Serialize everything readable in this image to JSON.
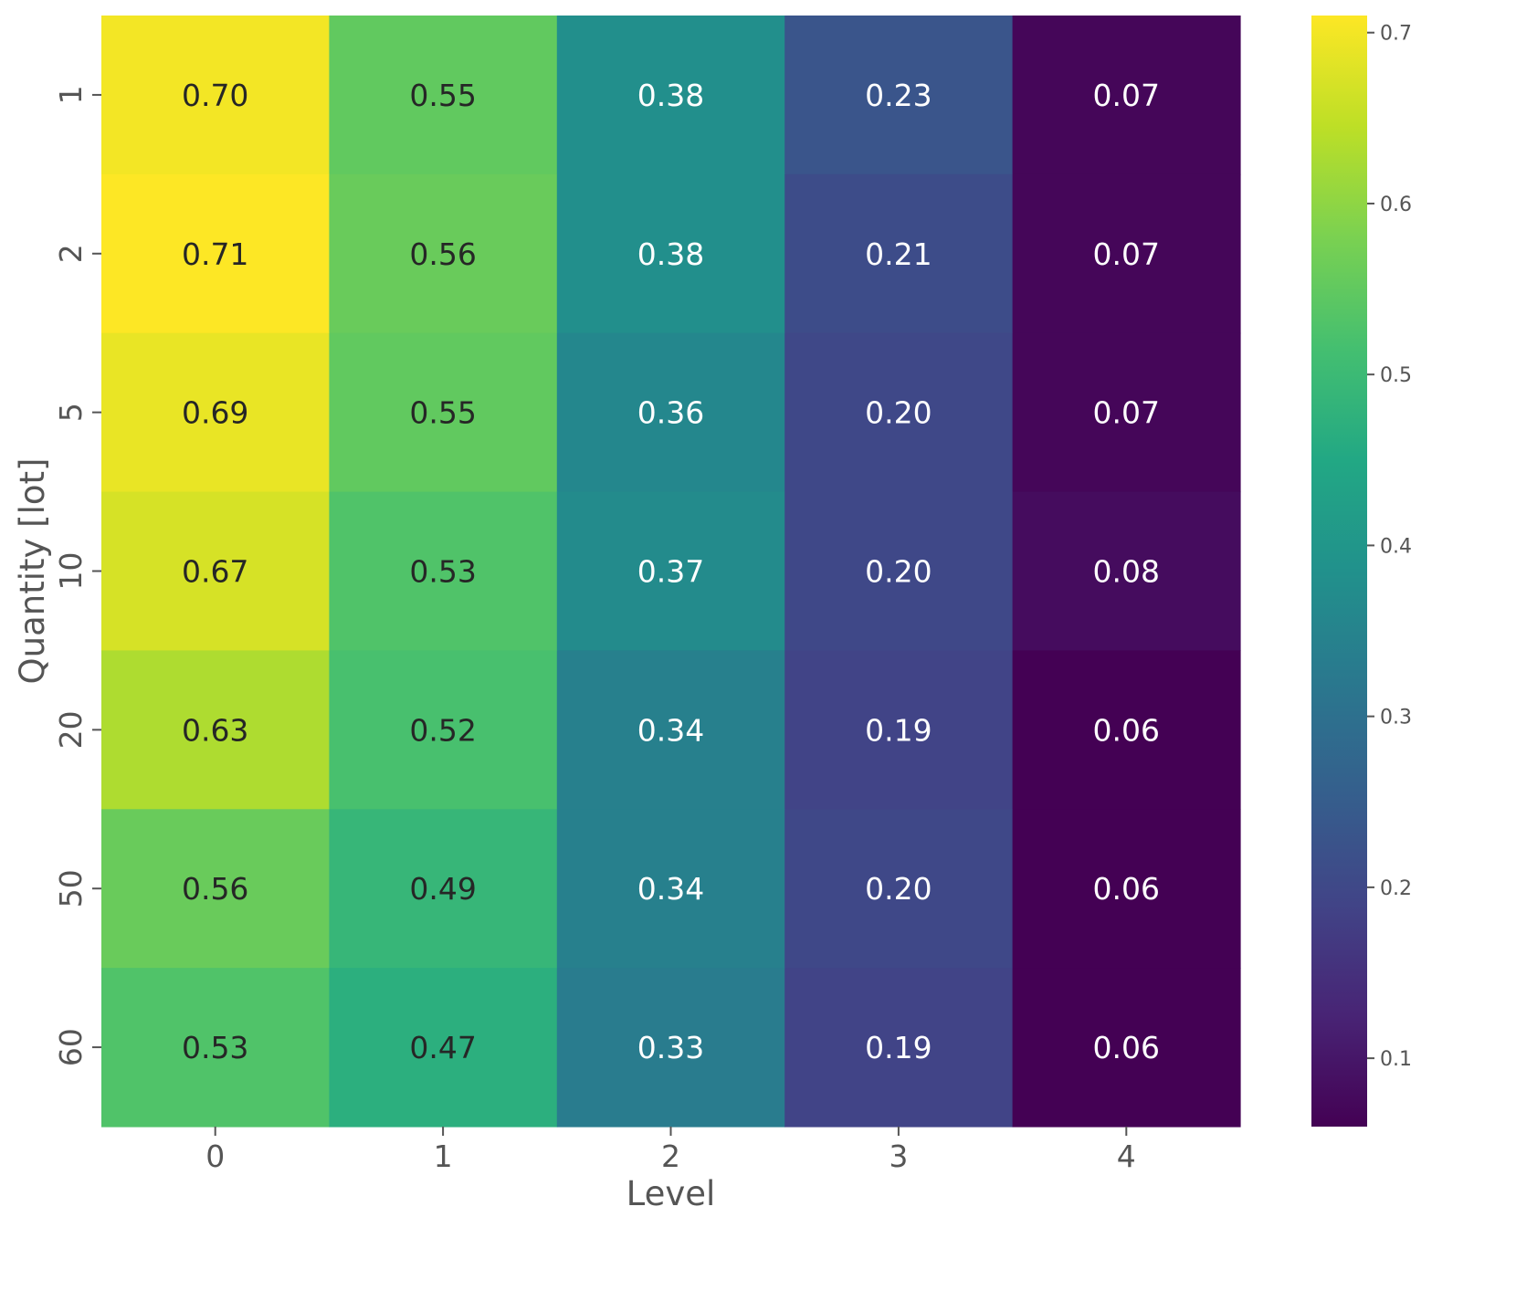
{
  "chart_data": {
    "type": "heatmap",
    "title": "",
    "xlabel": "Level",
    "ylabel": "Quantity [lot]",
    "x_categories": [
      "0",
      "1",
      "2",
      "3",
      "4"
    ],
    "y_categories": [
      "1",
      "2",
      "5",
      "10",
      "20",
      "50",
      "60"
    ],
    "values": [
      [
        0.7,
        0.55,
        0.38,
        0.23,
        0.07
      ],
      [
        0.71,
        0.56,
        0.38,
        0.21,
        0.07
      ],
      [
        0.69,
        0.55,
        0.36,
        0.2,
        0.07
      ],
      [
        0.67,
        0.53,
        0.37,
        0.2,
        0.08
      ],
      [
        0.63,
        0.52,
        0.34,
        0.19,
        0.06
      ],
      [
        0.56,
        0.49,
        0.34,
        0.2,
        0.06
      ],
      [
        0.53,
        0.47,
        0.33,
        0.19,
        0.06
      ]
    ],
    "cell_labels": [
      [
        "0.70",
        "0.55",
        "0.38",
        "0.23",
        "0.07"
      ],
      [
        "0.71",
        "0.56",
        "0.38",
        "0.21",
        "0.07"
      ],
      [
        "0.69",
        "0.55",
        "0.36",
        "0.20",
        "0.07"
      ],
      [
        "0.67",
        "0.53",
        "0.37",
        "0.20",
        "0.08"
      ],
      [
        "0.63",
        "0.52",
        "0.34",
        "0.19",
        "0.06"
      ],
      [
        "0.56",
        "0.49",
        "0.34",
        "0.20",
        "0.06"
      ],
      [
        "0.53",
        "0.47",
        "0.33",
        "0.19",
        "0.06"
      ]
    ],
    "colormap": "viridis",
    "colorbar": {
      "ticks": [
        0.1,
        0.2,
        0.3,
        0.4,
        0.5,
        0.6,
        0.7
      ],
      "tick_labels": [
        "0.1",
        "0.2",
        "0.3",
        "0.4",
        "0.5",
        "0.6",
        "0.7"
      ],
      "range": [
        0.06,
        0.71
      ]
    },
    "grid": false,
    "legend": "none"
  }
}
